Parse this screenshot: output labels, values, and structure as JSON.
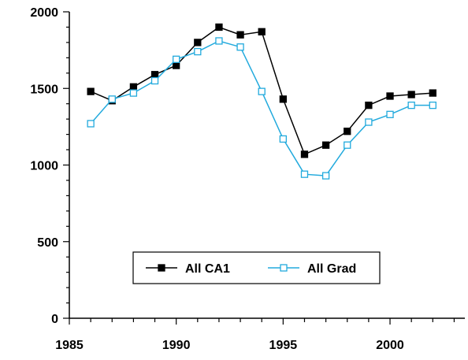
{
  "chart_data": {
    "type": "line",
    "title": "",
    "xlabel": "",
    "ylabel": "",
    "xlim": [
      1985,
      2003.5
    ],
    "ylim": [
      0,
      2000
    ],
    "x_ticks": [
      1985,
      1990,
      1995,
      2000
    ],
    "y_ticks": [
      0,
      500,
      1000,
      1500,
      2000
    ],
    "grid": false,
    "legend_position": "bottom-center",
    "series": [
      {
        "name": "All CA1",
        "color": "#000000",
        "marker": "filled-square",
        "x": [
          1986,
          1987,
          1988,
          1989,
          1990,
          1991,
          1992,
          1993,
          1994,
          1995,
          1996,
          1997,
          1998,
          1999,
          2000,
          2001,
          2002
        ],
        "values": [
          1480,
          1420,
          1510,
          1590,
          1650,
          1800,
          1900,
          1850,
          1870,
          1430,
          1070,
          1130,
          1220,
          1390,
          1450,
          1460,
          1470
        ]
      },
      {
        "name": "All Grad",
        "color": "#22aadd",
        "marker": "hollow-square",
        "x": [
          1986,
          1987,
          1988,
          1989,
          1990,
          1991,
          1992,
          1993,
          1994,
          1995,
          1996,
          1997,
          1998,
          1999,
          2000,
          2001,
          2002
        ],
        "values": [
          1270,
          1430,
          1470,
          1550,
          1690,
          1740,
          1810,
          1770,
          1480,
          1170,
          940,
          930,
          1130,
          1280,
          1330,
          1390,
          1390
        ]
      }
    ]
  }
}
